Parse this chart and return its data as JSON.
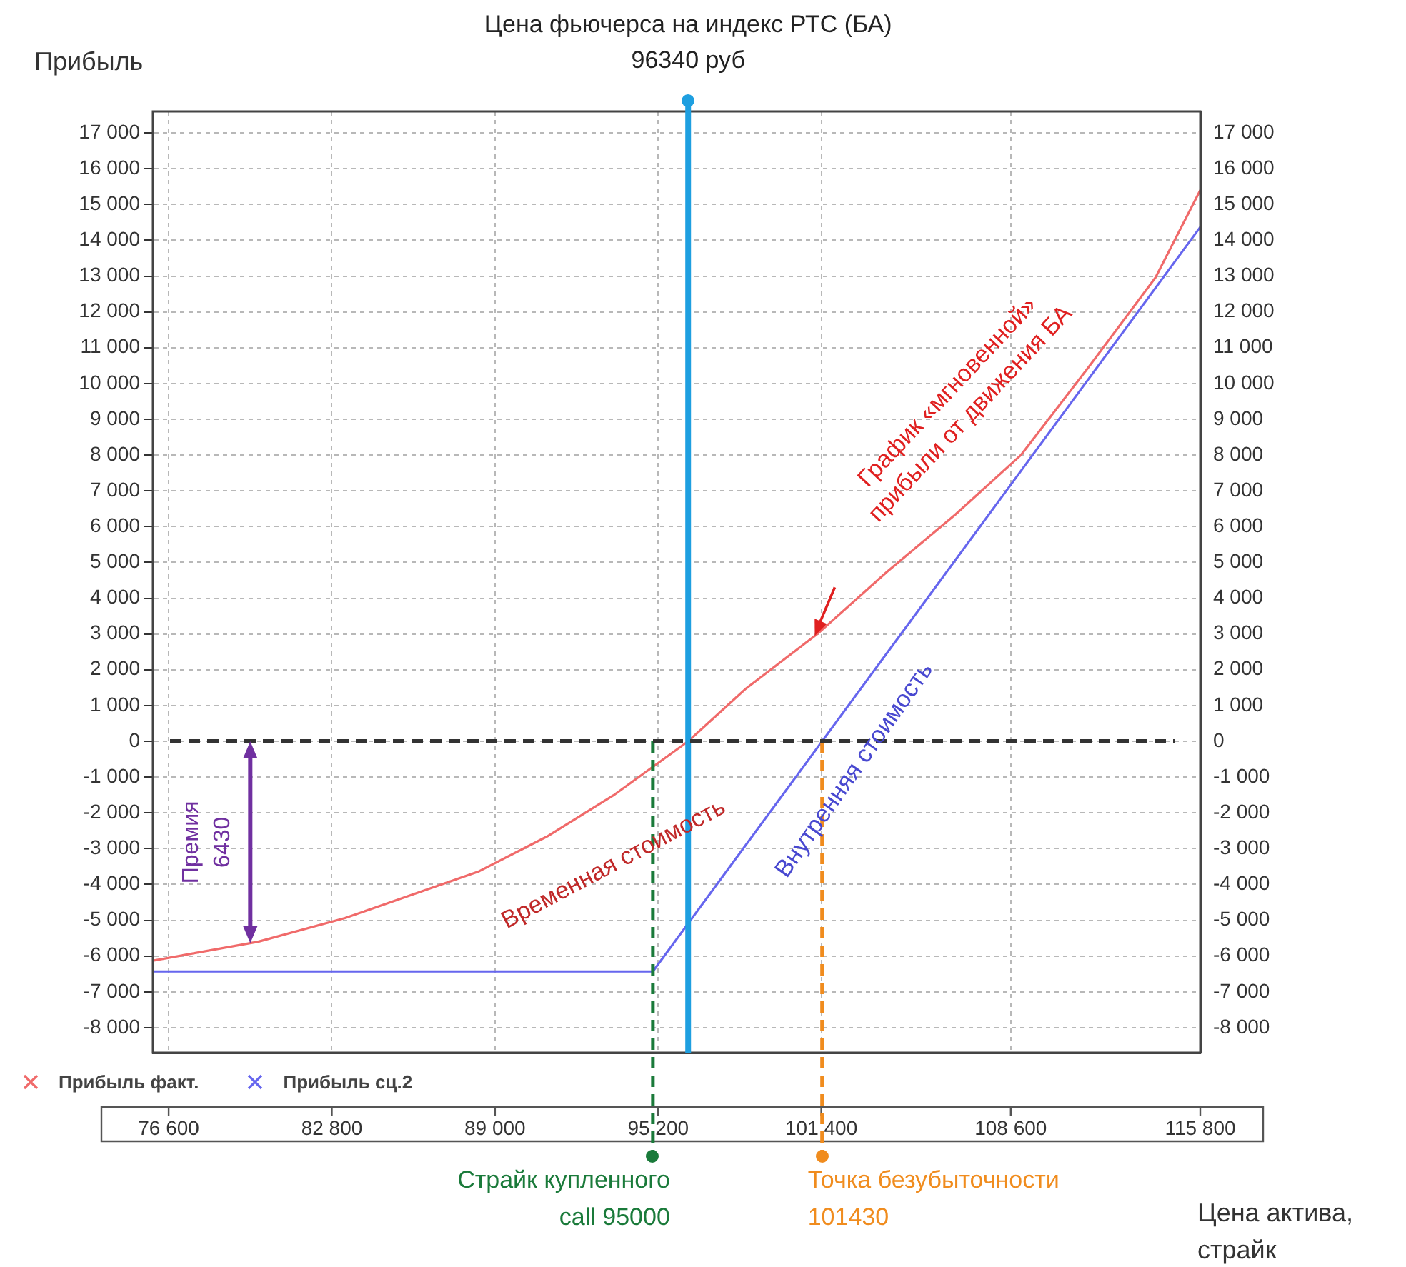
{
  "chart_data": {
    "type": "line",
    "xlabel": "Цена актива,\nстрайк",
    "ylabel": "Прибыль",
    "xlim": [
      76000,
      115800
    ],
    "xticks": [
      {
        "value": 76600,
        "label": "76 600"
      },
      {
        "value": 82800,
        "label": "82 800"
      },
      {
        "value": 89000,
        "label": "89 000"
      },
      {
        "value": 95200,
        "label": "95 200"
      },
      {
        "value": 101400,
        "label": "101 400"
      },
      {
        "value": 108600,
        "label": "108 600"
      },
      {
        "value": 115800,
        "label": "115 800"
      }
    ],
    "ylim": [
      -8700,
      17600
    ],
    "yticks": [
      {
        "value": -8000,
        "label": "-8 000"
      },
      {
        "value": -7000,
        "label": "-7 000"
      },
      {
        "value": -6000,
        "label": "-6 000"
      },
      {
        "value": -5000,
        "label": "-5 000"
      },
      {
        "value": -4000,
        "label": "-4 000"
      },
      {
        "value": -3000,
        "label": "-3 000"
      },
      {
        "value": -2000,
        "label": "-2 000"
      },
      {
        "value": -1000,
        "label": "-1 000"
      },
      0,
      {
        "value": 1000,
        "label": "1 000"
      },
      {
        "value": 2000,
        "label": "2 000"
      },
      {
        "value": 3000,
        "label": "3 000"
      },
      {
        "value": 4000,
        "label": "4 000"
      },
      {
        "value": 5000,
        "label": "5 000"
      },
      {
        "value": 6000,
        "label": "6 000"
      },
      {
        "value": 7000,
        "label": "7 000"
      },
      {
        "value": 8000,
        "label": "8 000"
      },
      {
        "value": 9000,
        "label": "9 000"
      },
      {
        "value": 10000,
        "label": "10 000"
      },
      {
        "value": 11000,
        "label": "11 000"
      },
      {
        "value": 12000,
        "label": "12 000"
      },
      {
        "value": 13000,
        "label": "13 000"
      },
      {
        "value": 14000,
        "label": "14 000"
      },
      {
        "value": 15000,
        "label": "15 000"
      },
      {
        "value": 16000,
        "label": "16 000"
      },
      {
        "value": 17000,
        "label": "17 000"
      }
    ],
    "y2lim": [
      -8700,
      17600
    ],
    "y2ticks": [
      {
        "value": -8000,
        "label": "-8 000"
      },
      {
        "value": -7000,
        "label": "-7 000"
      },
      {
        "value": -6000,
        "label": "-6 000"
      },
      {
        "value": -5000,
        "label": "-5 000"
      },
      {
        "value": -4000,
        "label": "-4 000"
      },
      {
        "value": -3000,
        "label": "-3 000"
      },
      {
        "value": -2000,
        "label": "-2 000"
      },
      {
        "value": -1000,
        "label": "-1 000"
      },
      0,
      {
        "value": 1000,
        "label": "1 000"
      },
      {
        "value": 2000,
        "label": "2 000"
      },
      {
        "value": 3000,
        "label": "3 000"
      },
      {
        "value": 4000,
        "label": "4 000"
      },
      {
        "value": 5000,
        "label": "5 000"
      },
      {
        "value": 6000,
        "label": "6 000"
      },
      {
        "value": 7000,
        "label": "7 000"
      },
      {
        "value": 8000,
        "label": "8 000"
      },
      {
        "value": 9000,
        "label": "9 000"
      },
      {
        "value": 10000,
        "label": "10 000"
      },
      {
        "value": 11000,
        "label": "11 000"
      },
      {
        "value": 12000,
        "label": "12 000"
      },
      {
        "value": 13000,
        "label": "13 000"
      },
      {
        "value": 14000,
        "label": "14 000"
      },
      {
        "value": 15000,
        "label": "15 000"
      },
      {
        "value": 16000,
        "label": "16 000"
      },
      {
        "value": 17000,
        "label": "17 000"
      }
    ],
    "grid": true,
    "legend": "bottom left",
    "marker": "none",
    "line_style": "solid",
    "series": [
      {
        "name": "Прибыль факт.",
        "color": "#f06a6a",
        "x": [
          76000,
          80000,
          83300,
          88400,
          91000,
          93500,
          96340,
          98500,
          101300,
          103900,
          106500,
          109000,
          111500,
          114100,
          115800
        ],
        "values": [
          -6130,
          -5600,
          -4940,
          -3630,
          -2650,
          -1510,
          0,
          1450,
          3030,
          4740,
          6340,
          8010,
          10400,
          12960,
          15400
        ]
      },
      {
        "name": "Прибыль сц.2",
        "color": "#6666ee",
        "x": [
          76000,
          95000,
          115800
        ],
        "values": [
          -6430,
          -6430,
          14370
        ]
      }
    ],
    "ref_lines": [
      {
        "axis": "x",
        "value": 96340,
        "label": "Цена фьючерса на индекс РТС (БА)\n96340 руб",
        "color": "#1e9fe0",
        "line_style": "solid"
      },
      {
        "axis": "x",
        "value": 95000,
        "label": "Страйк купленного\ncall 95000",
        "color": "#1a7a3a",
        "line_style": "dashed"
      },
      {
        "axis": "x",
        "value": 101430,
        "label": "Точка безубыточности\n101430",
        "color": "#f08c1e",
        "line_style": "dashed"
      },
      {
        "axis": "y",
        "value": 0,
        "color": "#333333",
        "line_style": "dashed"
      }
    ],
    "annotations": [
      "Премия\n6430",
      "График «мгновенной»\nприбыли от движения БА",
      "Временная стоимость",
      "Внутренняя стоимость"
    ]
  }
}
